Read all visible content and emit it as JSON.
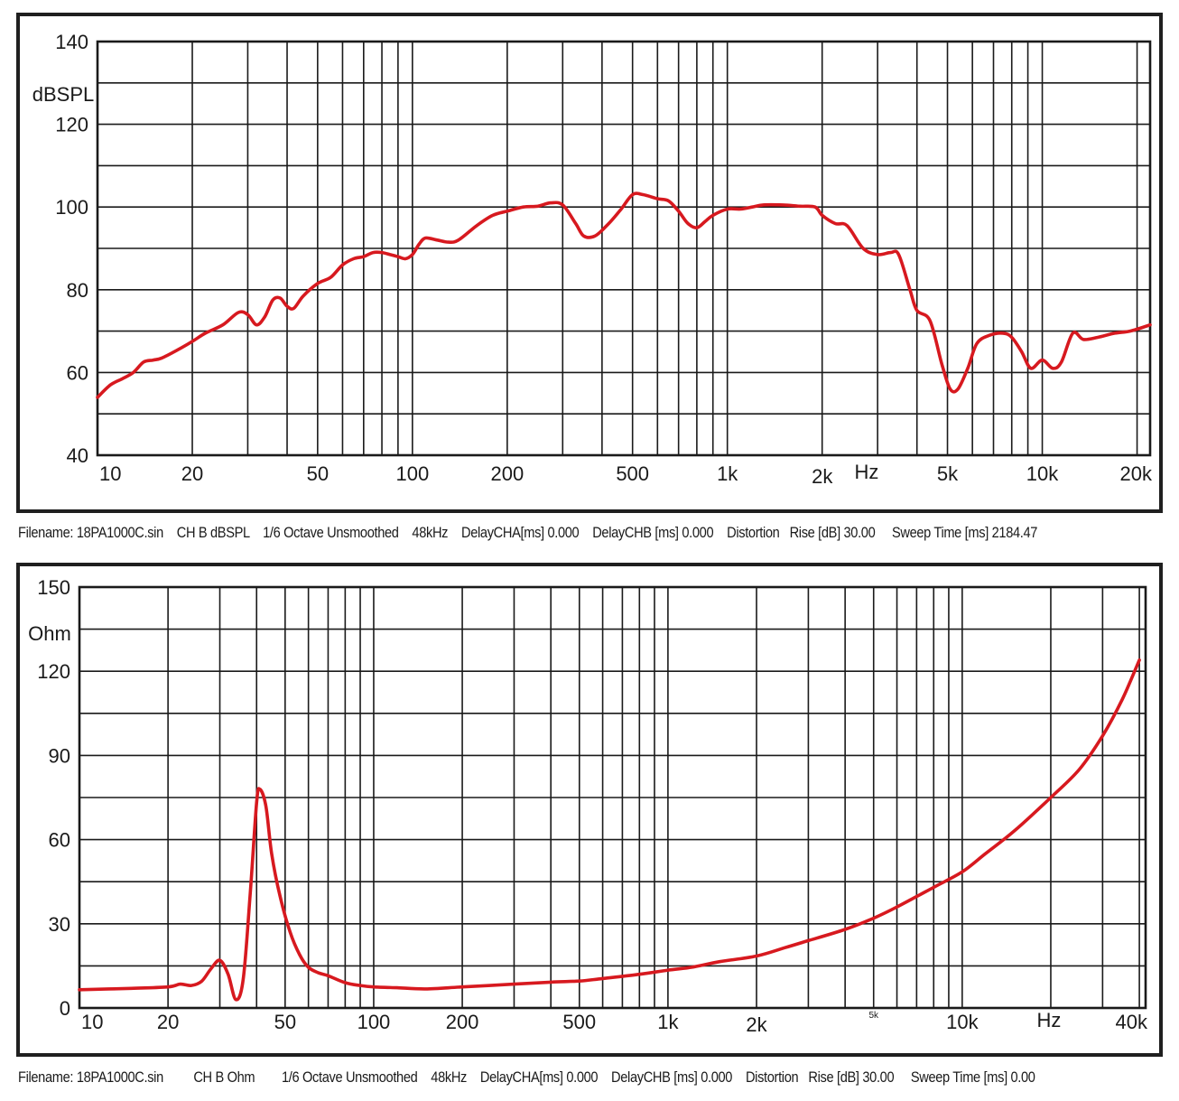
{
  "chart_data": [
    {
      "type": "line",
      "ylabel": "dBSPL",
      "xlabel": "Hz",
      "xscale": "log",
      "xlim": [
        10,
        22000
      ],
      "ylim": [
        40,
        140
      ],
      "yticks": [
        40,
        60,
        80,
        100,
        120,
        140
      ],
      "xticks": [
        {
          "value": 10,
          "label": "10"
        },
        {
          "value": 20,
          "label": "20"
        },
        {
          "value": 50,
          "label": "50"
        },
        {
          "value": 100,
          "label": "100"
        },
        {
          "value": 200,
          "label": "200"
        },
        {
          "value": 500,
          "label": "500"
        },
        {
          "value": 1000,
          "label": "1k"
        },
        {
          "value": 2000,
          "label": "2k"
        },
        {
          "value": 5000,
          "label": "5k"
        },
        {
          "value": 10000,
          "label": "10k"
        },
        {
          "value": 20000,
          "label": "20k"
        }
      ],
      "grid": true,
      "line_color": "#d7191f",
      "points": [
        [
          10,
          54
        ],
        [
          11,
          57
        ],
        [
          12,
          58.5
        ],
        [
          13,
          60
        ],
        [
          14,
          62.5
        ],
        [
          15,
          63
        ],
        [
          16,
          63.5
        ],
        [
          18,
          65.5
        ],
        [
          20,
          67.5
        ],
        [
          22,
          69.5
        ],
        [
          25,
          71.5
        ],
        [
          28,
          74.5
        ],
        [
          30,
          74
        ],
        [
          32,
          71.5
        ],
        [
          34,
          73.5
        ],
        [
          36,
          77.5
        ],
        [
          38,
          78
        ],
        [
          40,
          76
        ],
        [
          42,
          75.5
        ],
        [
          45,
          78.5
        ],
        [
          50,
          81.5
        ],
        [
          55,
          83
        ],
        [
          60,
          86
        ],
        [
          65,
          87.5
        ],
        [
          70,
          88
        ],
        [
          75,
          89
        ],
        [
          80,
          89
        ],
        [
          85,
          88.5
        ],
        [
          90,
          88
        ],
        [
          95,
          87.5
        ],
        [
          100,
          88.5
        ],
        [
          105,
          91
        ],
        [
          110,
          92.5
        ],
        [
          120,
          92
        ],
        [
          130,
          91.5
        ],
        [
          140,
          92
        ],
        [
          160,
          95.5
        ],
        [
          180,
          98
        ],
        [
          200,
          99
        ],
        [
          225,
          100
        ],
        [
          250,
          100.2
        ],
        [
          275,
          101
        ],
        [
          300,
          100.5
        ],
        [
          330,
          96
        ],
        [
          350,
          93
        ],
        [
          380,
          93
        ],
        [
          420,
          96
        ],
        [
          460,
          99.5
        ],
        [
          500,
          103
        ],
        [
          540,
          103
        ],
        [
          600,
          102
        ],
        [
          650,
          101.5
        ],
        [
          700,
          99
        ],
        [
          750,
          96
        ],
        [
          800,
          95
        ],
        [
          850,
          96.5
        ],
        [
          900,
          98
        ],
        [
          1000,
          99.5
        ],
        [
          1100,
          99.5
        ],
        [
          1200,
          100
        ],
        [
          1300,
          100.5
        ],
        [
          1500,
          100.5
        ],
        [
          1700,
          100.2
        ],
        [
          1900,
          100
        ],
        [
          2000,
          98
        ],
        [
          2200,
          96
        ],
        [
          2400,
          95.5
        ],
        [
          2700,
          90
        ],
        [
          3000,
          88.5
        ],
        [
          3300,
          89
        ],
        [
          3500,
          88.5
        ],
        [
          3800,
          80
        ],
        [
          4000,
          75
        ],
        [
          4400,
          72.5
        ],
        [
          4800,
          62
        ],
        [
          5100,
          56
        ],
        [
          5400,
          56
        ],
        [
          5800,
          61
        ],
        [
          6200,
          67
        ],
        [
          6800,
          69
        ],
        [
          7500,
          69.5
        ],
        [
          8000,
          68.5
        ],
        [
          8600,
          65
        ],
        [
          9200,
          61
        ],
        [
          10000,
          63
        ],
        [
          10800,
          61
        ],
        [
          11500,
          62.5
        ],
        [
          12500,
          69.5
        ],
        [
          13500,
          68
        ],
        [
          15000,
          68.5
        ],
        [
          17000,
          69.5
        ],
        [
          19000,
          70
        ],
        [
          22000,
          71.5
        ]
      ]
    },
    {
      "type": "line",
      "ylabel": "Ohm",
      "xlabel": "Hz",
      "xscale": "log",
      "xlim": [
        10,
        42000
      ],
      "ylim": [
        0,
        150
      ],
      "yticks": [
        0,
        30,
        60,
        90,
        120,
        150
      ],
      "xticks": [
        {
          "value": 10,
          "label": "10"
        },
        {
          "value": 20,
          "label": "20"
        },
        {
          "value": 50,
          "label": "50"
        },
        {
          "value": 100,
          "label": "100"
        },
        {
          "value": 200,
          "label": "200"
        },
        {
          "value": 500,
          "label": "500"
        },
        {
          "value": 1000,
          "label": "1k"
        },
        {
          "value": 2000,
          "label": "2k"
        },
        {
          "value": 5000,
          "label": "5k"
        },
        {
          "value": 10000,
          "label": "10k"
        },
        {
          "value": 40000,
          "label": "40k"
        }
      ],
      "grid": true,
      "line_color": "#d7191f",
      "points": [
        [
          10,
          6.5
        ],
        [
          15,
          7
        ],
        [
          20,
          7.5
        ],
        [
          22,
          8.5
        ],
        [
          24,
          8
        ],
        [
          26,
          9.5
        ],
        [
          28,
          14
        ],
        [
          30,
          17
        ],
        [
          32,
          12
        ],
        [
          34,
          3
        ],
        [
          36,
          10
        ],
        [
          38,
          40
        ],
        [
          40,
          73
        ],
        [
          41,
          78
        ],
        [
          43,
          72
        ],
        [
          45,
          55
        ],
        [
          48,
          40
        ],
        [
          52,
          27
        ],
        [
          56,
          19
        ],
        [
          60,
          14.5
        ],
        [
          65,
          12.5
        ],
        [
          70,
          11.5
        ],
        [
          80,
          9
        ],
        [
          90,
          8
        ],
        [
          100,
          7.5
        ],
        [
          120,
          7.2
        ],
        [
          150,
          6.8
        ],
        [
          200,
          7.5
        ],
        [
          300,
          8.5
        ],
        [
          400,
          9.2
        ],
        [
          500,
          9.6
        ],
        [
          600,
          10.5
        ],
        [
          800,
          12
        ],
        [
          1000,
          13.5
        ],
        [
          1200,
          14.5
        ],
        [
          1500,
          16.5
        ],
        [
          2000,
          18.5
        ],
        [
          2500,
          21.5
        ],
        [
          3000,
          24
        ],
        [
          4000,
          28
        ],
        [
          5000,
          32
        ],
        [
          6000,
          36
        ],
        [
          8000,
          43
        ],
        [
          10000,
          48.5
        ],
        [
          12000,
          55
        ],
        [
          15000,
          63
        ],
        [
          20000,
          75
        ],
        [
          25000,
          85
        ],
        [
          30000,
          97
        ],
        [
          35000,
          110
        ],
        [
          40000,
          124
        ]
      ]
    }
  ],
  "footer1": "Filename: 18PA1000C.sin    CH B dBSPL    1/6 Octave Unsmoothed    48kHz    DelayCHA[ms] 0.000    DelayCHB [ms] 0.000    Distortion   Rise [dB] 30.00     Sweep Time [ms] 2184.47",
  "footer2": "Filename: 18PA1000C.sin         CH B Ohm        1/6 Octave Unsmoothed    48kHz    DelayCHA[ms] 0.000    DelayCHB [ms] 0.000    Distortion   Rise [dB] 30.00     Sweep Time [ms] 0.00"
}
